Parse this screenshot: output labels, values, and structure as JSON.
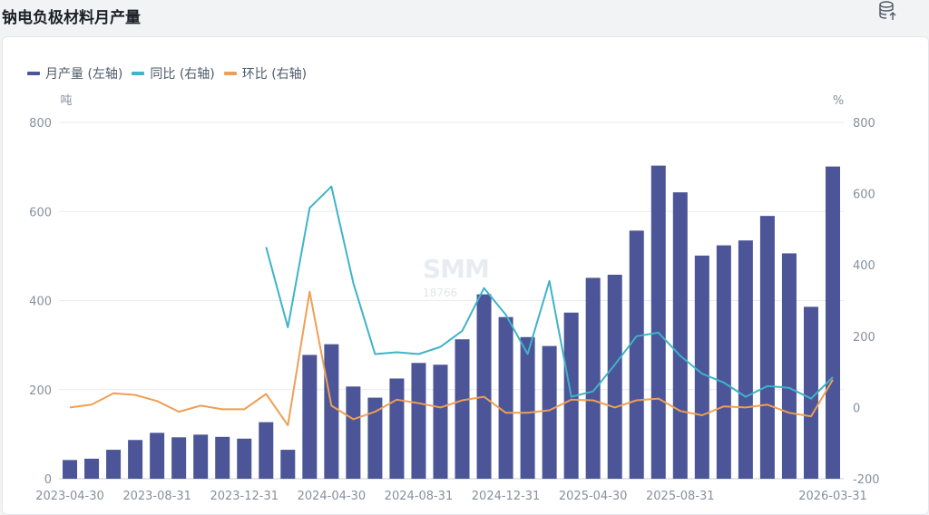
{
  "page": {
    "title": "钠电负极材料月产量"
  },
  "watermark": {
    "logo": "SMM",
    "phone": "18766"
  },
  "colors": {
    "bar": "#4b5597",
    "yoy": "#3fb3c9",
    "mom": "#ee9f55",
    "grid": "#e8eaed",
    "axis_text": "#86909c"
  },
  "icons": {
    "export": "database-export-icon"
  },
  "chart_data": {
    "type": "bar",
    "legend": {
      "position": "top-left",
      "items": [
        "月产量 (左轴)",
        "同比 (右轴)",
        "环比 (右轴)"
      ]
    },
    "x_tick_labels": [
      "2023-04-30",
      "2023-08-31",
      "2023-12-31",
      "2024-04-30",
      "2024-08-31",
      "2024-12-31",
      "2025-04-30",
      "2025-08-31",
      "2026-03-31"
    ],
    "x": [
      "2023-04-30",
      "2023-05-31",
      "2023-06-30",
      "2023-07-31",
      "2023-08-31",
      "2023-09-30",
      "2023-10-31",
      "2023-11-30",
      "2023-12-31",
      "2024-01-31",
      "2024-02-29",
      "2024-03-31",
      "2024-04-30",
      "2024-05-31",
      "2024-06-30",
      "2024-07-31",
      "2024-08-31",
      "2024-09-30",
      "2024-10-31",
      "2024-11-30",
      "2024-12-31",
      "2025-01-31",
      "2025-02-28",
      "2025-03-31",
      "2025-04-30",
      "2025-05-31",
      "2025-06-30",
      "2025-07-31",
      "2025-08-31",
      "2025-09-30",
      "2025-10-31",
      "2025-11-30",
      "2025-12-31",
      "2026-01-31",
      "2026-02-28",
      "2026-03-31"
    ],
    "y_left": {
      "label": "吨",
      "min": 0,
      "max": 800,
      "ticks": [
        0,
        200,
        400,
        600,
        800
      ]
    },
    "y_right": {
      "label": "%",
      "min": -200,
      "max": 800,
      "ticks": [
        -200,
        0,
        200,
        400,
        600,
        800
      ]
    },
    "grid": true,
    "series": [
      {
        "name": "月产量 (左轴)",
        "type": "bar",
        "axis": "left",
        "values": [
          42,
          45,
          65,
          87,
          103,
          93,
          99,
          94,
          90,
          127,
          65,
          278,
          302,
          207,
          182,
          225,
          260,
          256,
          313,
          414,
          363,
          318,
          298,
          373,
          451,
          458,
          557,
          703,
          643,
          501,
          524,
          535,
          590,
          506,
          386,
          701
        ]
      },
      {
        "name": "同比 (右轴)",
        "type": "line",
        "axis": "right",
        "values": [
          null,
          null,
          null,
          null,
          null,
          null,
          null,
          null,
          null,
          450,
          225,
          560,
          620,
          350,
          150,
          155,
          150,
          170,
          215,
          335,
          260,
          150,
          355,
          30,
          45,
          120,
          200,
          210,
          145,
          95,
          70,
          30,
          60,
          55,
          25,
          85
        ]
      },
      {
        "name": "环比 (右轴)",
        "type": "line",
        "axis": "right",
        "values": [
          0,
          8,
          40,
          35,
          18,
          -12,
          5,
          -5,
          -5,
          38,
          -50,
          325,
          5,
          -33,
          -12,
          22,
          12,
          0,
          20,
          30,
          -15,
          -15,
          -8,
          22,
          20,
          0,
          20,
          25,
          -10,
          -22,
          3,
          0,
          8,
          -15,
          -25,
          78
        ]
      }
    ]
  }
}
